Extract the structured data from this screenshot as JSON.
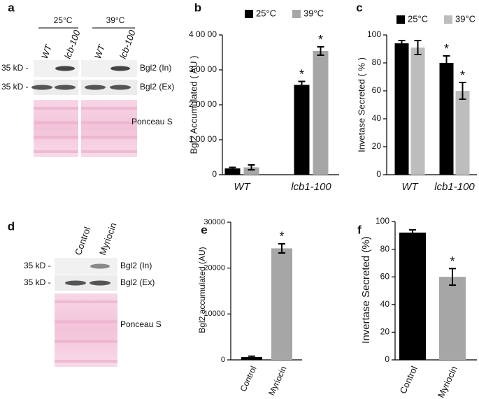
{
  "blots": [
    {
      "label": "a",
      "conditions": [
        "25°C",
        "39°C"
      ],
      "lanes": [
        "WT",
        "lcb-100",
        "WT",
        "lcb-100"
      ],
      "markers": [
        "35 kD -",
        "35 kD -"
      ],
      "bands": [
        "Bgl2 (In)",
        "Bgl2 (Ex)"
      ],
      "stain": "Ponceau S"
    },
    {
      "label": "d",
      "lanes": [
        "Control",
        "Myriocin"
      ],
      "markers": [
        "35 kD -",
        "35 kD -"
      ],
      "bands": [
        "Bgl2 (In)",
        "Bgl2 (Ex)"
      ],
      "stain": "Ponceau S"
    }
  ],
  "chart_data": [
    {
      "type": "bar",
      "label": "b",
      "ylabel": "Bgl2  Accumulated ( AU )",
      "categories": [
        "WT",
        "lcb1-100"
      ],
      "series": [
        {
          "name": "25°C",
          "color": "#000000",
          "values": [
            1800,
            25700
          ],
          "errors": [
            300,
            1000
          ],
          "annotations": [
            null,
            "*"
          ]
        },
        {
          "name": "39°C",
          "color": "#a6a6a6",
          "values": [
            2100,
            35400
          ],
          "errors": [
            700,
            1200
          ],
          "annotations": [
            null,
            "*"
          ]
        }
      ],
      "ylim": [
        0,
        40000
      ],
      "yticks": [
        0,
        {
          "value": 10000,
          "label": "1 00 00"
        },
        {
          "value": 20000,
          "label": "2 00 00"
        },
        {
          "value": 30000,
          "label": "3 00 00"
        },
        {
          "value": 40000,
          "label": "4 00 00"
        }
      ]
    },
    {
      "type": "bar",
      "label": "c",
      "ylabel": "Invetase  Secreted ( % )",
      "categories": [
        "WT",
        "lcb1-100"
      ],
      "series": [
        {
          "name": "25°C",
          "color": "#000000",
          "values": [
            94,
            80
          ],
          "errors": [
            2,
            5
          ],
          "annotations": [
            null,
            "*"
          ]
        },
        {
          "name": "39°C",
          "color": "#bdbdbd",
          "values": [
            91,
            60
          ],
          "errors": [
            5,
            6
          ],
          "annotations": [
            null,
            "*"
          ]
        }
      ],
      "ylim": [
        0,
        100
      ],
      "yticks": [
        0,
        20,
        40,
        60,
        80,
        100
      ]
    },
    {
      "type": "bar",
      "label": "e",
      "ylabel": "Bgl2 accumulated (AU)",
      "categories": [
        "Control",
        "Myriocin"
      ],
      "series": [
        {
          "colors": [
            "#000000",
            "#a6a6a6"
          ],
          "values": [
            600,
            24300
          ],
          "errors": [
            200,
            1000
          ],
          "annotations": [
            null,
            "*"
          ]
        }
      ],
      "ylim": [
        0,
        30000
      ],
      "yticks": [
        0,
        10000,
        20000,
        30000
      ]
    },
    {
      "type": "bar",
      "label": "f",
      "ylabel": "Invertase Secreted (%)",
      "categories": [
        "Control",
        "Myriocin"
      ],
      "series": [
        {
          "colors": [
            "#000000",
            "#a6a6a6"
          ],
          "values": [
            92,
            60
          ],
          "errors": [
            2,
            6
          ],
          "annotations": [
            null,
            "*"
          ]
        }
      ],
      "ylim": [
        0,
        100
      ],
      "yticks": [
        0,
        20,
        40,
        60,
        80,
        100
      ]
    }
  ]
}
